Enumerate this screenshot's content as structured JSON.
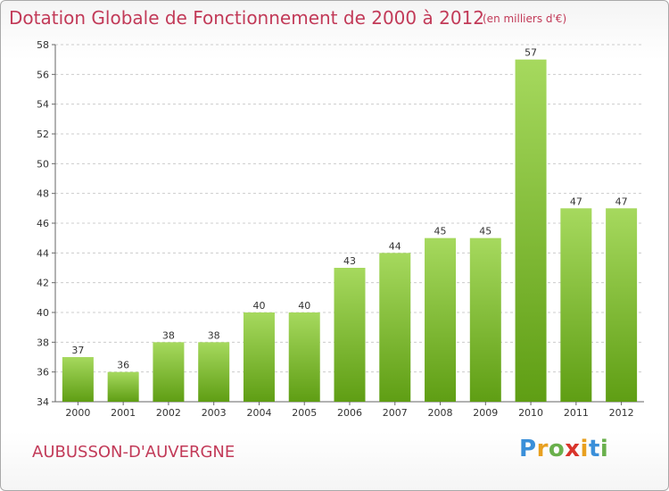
{
  "header": {
    "title": "Dotation Globale de Fonctionnement de 2000 à 2012",
    "subtitle": "(en milliers d'€)"
  },
  "footer": {
    "commune": "AUBUSSON-D'AUVERGNE",
    "logo_letters": [
      "P",
      "r",
      "o",
      "x",
      "i",
      "t",
      "i"
    ],
    "logo_colors": [
      "#3a8fd9",
      "#e8a020",
      "#6ab04c",
      "#d9342b",
      "#e8a020",
      "#3a8fd9",
      "#6ab04c"
    ]
  },
  "chart_data": {
    "type": "bar",
    "title": "Dotation Globale de Fonctionnement de 2000 à 2012",
    "subtitle": "(en milliers d'€)",
    "xlabel": "",
    "ylabel": "",
    "categories": [
      "2000",
      "2001",
      "2002",
      "2003",
      "2004",
      "2005",
      "2006",
      "2007",
      "2008",
      "2009",
      "2010",
      "2011",
      "2012"
    ],
    "values": [
      37,
      36,
      38,
      38,
      40,
      40,
      43,
      44,
      45,
      45,
      57,
      47,
      47
    ],
    "ylim": [
      34,
      58
    ],
    "yticks": [
      34,
      36,
      38,
      40,
      42,
      44,
      46,
      48,
      50,
      52,
      54,
      56,
      58
    ],
    "grid": true,
    "legend": "none",
    "colors": {
      "bar_top": "#9fd356",
      "bar_bottom": "#5f9e14",
      "grid": "#cccccc",
      "text": "#333333",
      "accent": "#c23a58"
    }
  }
}
